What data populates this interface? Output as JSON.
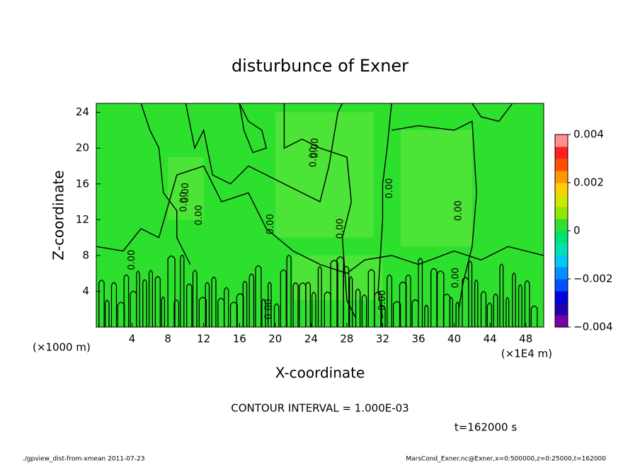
{
  "chart_data": {
    "type": "contour",
    "title": "disturbunce of Exner",
    "x_label": "X-coordinate",
    "y_label": "Z-coordinate",
    "y_unit": "(×1000 m)",
    "x_unit": "(×1E4 m)",
    "xlim": [
      0,
      50
    ],
    "xticks": [
      4,
      8,
      12,
      16,
      20,
      24,
      28,
      32,
      36,
      40,
      44,
      48
    ],
    "ylim": [
      0,
      25
    ],
    "yticks": [
      4,
      8,
      12,
      16,
      20,
      24
    ],
    "field_color": "#2ee02e",
    "light_color": "#5ae63a",
    "contour_color": "#000000",
    "contour_labels": [
      "0.00",
      "0.00",
      "0.00",
      "0.00",
      "0.00",
      "0.00",
      "0.00",
      "0.00",
      "0.00",
      "0.00",
      "0.00",
      "0.00",
      "0.00"
    ],
    "colorbar": {
      "lim": [
        -0.004,
        0.004
      ],
      "ticks": [
        {
          "value": -0.004,
          "label": "−0.004"
        },
        {
          "value": -0.002,
          "label": "−0.002"
        },
        0,
        0.002,
        0.004
      ],
      "colors": [
        "#7a00a8",
        "#2000b0",
        "#0000e0",
        "#0050ff",
        "#0090ff",
        "#00c8f0",
        "#00e0b0",
        "#00e070",
        "#30e030",
        "#90e800",
        "#d0e800",
        "#ffd000",
        "#ff9800",
        "#ff5000",
        "#ff2020",
        "#ff9090"
      ]
    },
    "contour_interval": "CONTOUR INTERVAL = 1.000E-03",
    "time_label": "t=162000 s",
    "footer_left": "./gpview_dist-from-xmean  2011-07-23",
    "footer_right": "MarsCond_Exner.nc@Exner,x=0:500000,z=0:25000,t=162000"
  }
}
